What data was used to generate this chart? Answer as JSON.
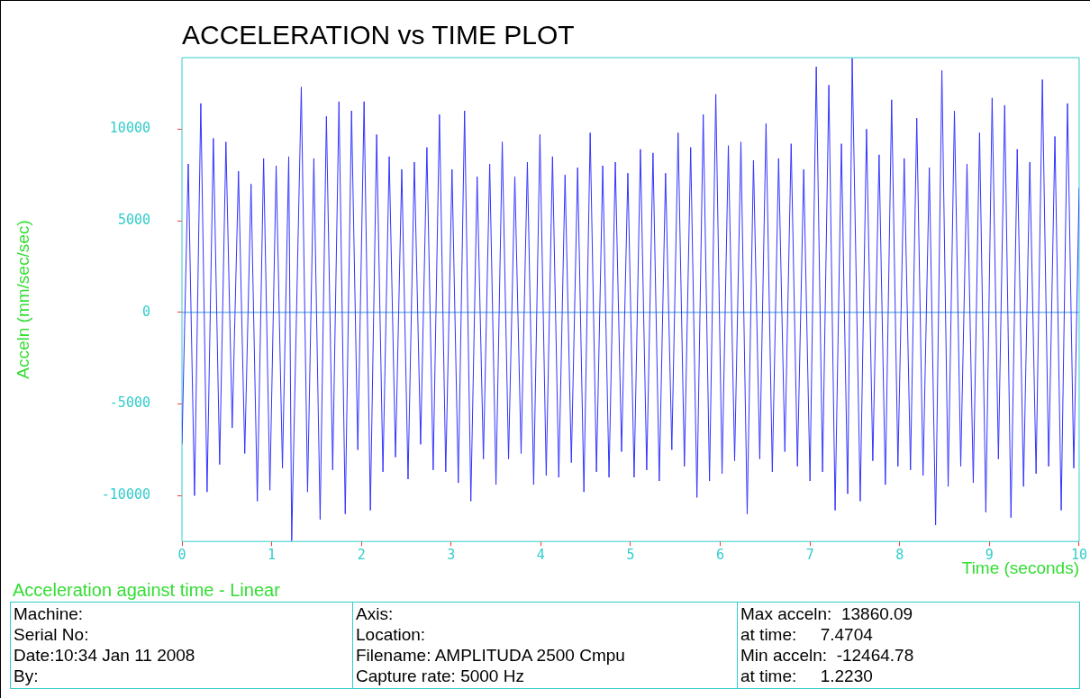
{
  "chart_data": {
    "type": "line",
    "title": "ACCELERATION vs TIME PLOT",
    "subtitle": "Acceleration against time - Linear",
    "xlabel": "Time (seconds)",
    "ylabel": "Acceln (mm/sec/sec)",
    "x": [
      0,
      0.07,
      0.14,
      0.21,
      0.28,
      0.35,
      0.42,
      0.49,
      0.56,
      0.63,
      0.7,
      0.77,
      0.84,
      0.91,
      0.98,
      1.05,
      1.12,
      1.19,
      1.223,
      1.33,
      1.4,
      1.47,
      1.54,
      1.61,
      1.68,
      1.75,
      1.82,
      1.89,
      1.96,
      2.03,
      2.1,
      2.17,
      2.24,
      2.31,
      2.38,
      2.45,
      2.52,
      2.59,
      2.66,
      2.73,
      2.8,
      2.87,
      2.94,
      3.01,
      3.08,
      3.15,
      3.22,
      3.29,
      3.36,
      3.43,
      3.5,
      3.57,
      3.64,
      3.71,
      3.78,
      3.85,
      3.92,
      3.99,
      4.06,
      4.13,
      4.2,
      4.27,
      4.34,
      4.41,
      4.48,
      4.55,
      4.62,
      4.69,
      4.76,
      4.83,
      4.9,
      4.97,
      5.04,
      5.11,
      5.18,
      5.25,
      5.32,
      5.39,
      5.46,
      5.53,
      5.6,
      5.67,
      5.74,
      5.81,
      5.88,
      5.95,
      6.02,
      6.09,
      6.16,
      6.23,
      6.3,
      6.37,
      6.44,
      6.51,
      6.58,
      6.65,
      6.72,
      6.79,
      6.86,
      6.93,
      7.0,
      7.07,
      7.14,
      7.21,
      7.28,
      7.35,
      7.42,
      7.4704,
      7.56,
      7.63,
      7.7,
      7.77,
      7.84,
      7.91,
      7.98,
      8.05,
      8.12,
      8.19,
      8.26,
      8.33,
      8.4,
      8.47,
      8.54,
      8.61,
      8.68,
      8.75,
      8.82,
      8.89,
      8.96,
      9.03,
      9.1,
      9.17,
      9.24,
      9.31,
      9.38,
      9.45,
      9.52,
      9.59,
      9.66,
      9.73,
      9.8,
      9.87,
      9.94,
      10.0
    ],
    "series": [
      {
        "color": "#3333ff",
        "values": [
          -7200,
          8100,
          -10000,
          11400,
          -9800,
          9500,
          -8300,
          9300,
          -6300,
          7700,
          -7700,
          7000,
          -10300,
          8400,
          -9700,
          8000,
          -8500,
          8500,
          -12465,
          12300,
          -9800,
          8400,
          -11300,
          10700,
          -8600,
          11500,
          -11000,
          11000,
          -7500,
          11500,
          -10800,
          9700,
          -8700,
          8500,
          -7900,
          7800,
          -9100,
          8200,
          -7200,
          9000,
          -8600,
          10800,
          -8700,
          7800,
          -9300,
          11000,
          -10300,
          7400,
          -8000,
          8100,
          -9400,
          9300,
          -8000,
          7400,
          -7700,
          8200,
          -9400,
          9700,
          -8900,
          8500,
          -9000,
          7500,
          -8200,
          7900,
          -9800,
          9800,
          -8700,
          8000,
          -9000,
          8200,
          -7600,
          7600,
          -9000,
          8900,
          -8600,
          8700,
          -9200,
          7600,
          -7500,
          9800,
          -8400,
          9000,
          -10100,
          10800,
          -9200,
          11900,
          -8800,
          9100,
          -8100,
          9300,
          -11000,
          8300,
          -8000,
          10300,
          -8700,
          8400,
          -7600,
          9200,
          -8400,
          7800,
          -9200,
          13400,
          -8700,
          12400,
          -10800,
          9200,
          -9900,
          13860,
          -10300,
          10000,
          -8100,
          8600,
          -9400,
          11600,
          -8400,
          8400,
          -8600,
          10600,
          -8900,
          7900,
          -11600,
          13200,
          -9500,
          11000,
          -8400,
          8100,
          -9300,
          9800,
          -10900,
          11700,
          -8000,
          11300,
          -11200,
          8900,
          -9500,
          8200,
          -8800,
          12700,
          -8400,
          9600,
          -10800,
          11400,
          -8500,
          6800
        ]
      }
    ],
    "xlim": [
      0,
      10
    ],
    "ylim": [
      -12500,
      13900
    ],
    "xticks": [
      0,
      1,
      2,
      3,
      4,
      5,
      6,
      7,
      8,
      9,
      10
    ],
    "yticks": [
      -10000,
      -5000,
      0,
      5000,
      10000
    ],
    "grid": false,
    "legend": false,
    "marker": "none",
    "line_style": "solid",
    "ref_lines": [
      {
        "axis": "y",
        "value": 0,
        "color": "#3399dd"
      }
    ],
    "annotations": [
      "Machine:",
      "Serial No:",
      "Date:10:34 Jan 11 2008",
      "By:",
      "Axis:",
      "Location:",
      "Filename: AMPLITUDA 2500 Cmpu",
      "Capture rate: 5000 Hz",
      "Max acceln:  13860.09",
      "at time:     7.4704",
      "Min acceln:  -12464.78",
      "at time:     1.2230"
    ]
  }
}
